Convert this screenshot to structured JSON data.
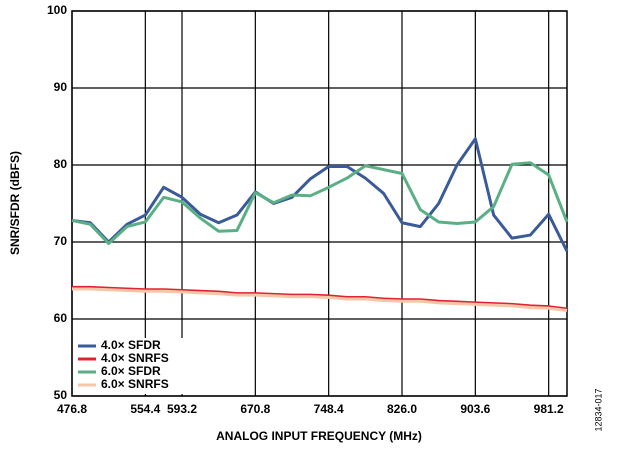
{
  "chart_data": {
    "type": "line",
    "x_label": "ANALOG INPUT FREQUENCY (MHz)",
    "y_label": "SNR/SFDR (dBFS)",
    "figure_id": "12834-017",
    "x": [
      476.8,
      496.2,
      515.6,
      535.0,
      554.4,
      573.8,
      593.2,
      612.6,
      632.0,
      651.4,
      670.8,
      690.2,
      709.6,
      729.0,
      748.4,
      767.8,
      787.2,
      806.6,
      826.0,
      845.4,
      864.8,
      884.2,
      903.6,
      923.0,
      942.4,
      961.8,
      981.2,
      1000.6
    ],
    "series": [
      {
        "name": "4.0× SFDR",
        "color": "#3a5a9a",
        "values": [
          72.8,
          72.5,
          70.0,
          72.3,
          73.5,
          77.1,
          75.8,
          73.6,
          72.5,
          73.5,
          76.5,
          75.0,
          75.8,
          78.2,
          79.8,
          79.8,
          78.3,
          76.3,
          72.5,
          72.0,
          75.0,
          80.0,
          83.4,
          73.5,
          70.5,
          70.9,
          73.6,
          68.8
        ]
      },
      {
        "name": "4.0× SNRFS",
        "color": "#e0242f",
        "values": [
          64.1,
          64.1,
          64.0,
          63.9,
          63.8,
          63.8,
          63.7,
          63.6,
          63.5,
          63.3,
          63.3,
          63.2,
          63.1,
          63.1,
          63.0,
          62.8,
          62.8,
          62.6,
          62.5,
          62.5,
          62.3,
          62.2,
          62.1,
          62.0,
          61.9,
          61.7,
          61.6,
          61.3
        ]
      },
      {
        "name": "6.0× SFDR",
        "color": "#5aaf84",
        "values": [
          72.8,
          72.3,
          69.8,
          72.0,
          72.6,
          75.8,
          75.2,
          73.1,
          71.4,
          71.5,
          76.4,
          75.1,
          76.1,
          76.0,
          77.1,
          78.3,
          79.9,
          79.4,
          78.9,
          74.2,
          72.6,
          72.4,
          72.6,
          74.6,
          80.1,
          80.3,
          78.7,
          72.6
        ]
      },
      {
        "name": "6.0× SNRFS",
        "color": "#f6c6a8",
        "values": [
          63.9,
          63.9,
          63.8,
          63.7,
          63.6,
          63.6,
          63.5,
          63.4,
          63.3,
          63.1,
          63.1,
          63.0,
          62.9,
          62.9,
          62.8,
          62.6,
          62.6,
          62.4,
          62.3,
          62.3,
          62.1,
          62.0,
          61.9,
          61.8,
          61.7,
          61.5,
          61.4,
          61.1
        ]
      }
    ],
    "xlim": [
      476.8,
      1000.6
    ],
    "xticks": [
      476.8,
      554.4,
      593.2,
      670.8,
      748.4,
      {
        "value": 826,
        "label": "826.0"
      },
      903.6,
      981.2
    ],
    "ylim": [
      50,
      100
    ],
    "yticks": [
      50,
      60,
      70,
      80,
      90,
      100
    ],
    "grid": true,
    "legend": "lower-left"
  }
}
